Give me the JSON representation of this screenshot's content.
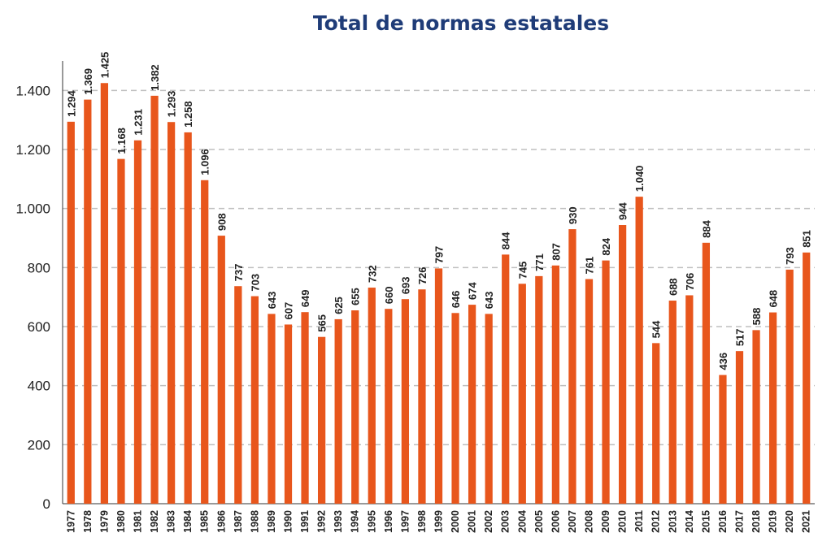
{
  "chart_data": {
    "type": "bar",
    "title": "Total de normas estatales",
    "xlabel": "",
    "ylabel": "",
    "ylim": [
      0,
      1500
    ],
    "yticks": [
      0,
      200,
      400,
      600,
      800,
      1000,
      1200,
      1400
    ],
    "ytick_labels": [
      "0",
      "200",
      "400",
      "600",
      "800",
      "1.000",
      "1.200",
      "1.400"
    ],
    "grid": true,
    "bar_color": "#e8561c",
    "grid_color": "#bfbfbf",
    "title_color": "#1f3c78",
    "categories": [
      "1977",
      "1978",
      "1979",
      "1980",
      "1981",
      "1982",
      "1983",
      "1984",
      "1985",
      "1986",
      "1987",
      "1988",
      "1989",
      "1990",
      "1991",
      "1992",
      "1993",
      "1994",
      "1995",
      "1996",
      "1997",
      "1998",
      "1999",
      "2000",
      "2001",
      "2002",
      "2003",
      "2004",
      "2005",
      "2006",
      "2007",
      "2008",
      "2009",
      "2010",
      "2011",
      "2012",
      "2013",
      "2014",
      "2015",
      "2016",
      "2017",
      "2018",
      "2019",
      "2020",
      "2021"
    ],
    "values": [
      1294,
      1369,
      1425,
      1168,
      1231,
      1382,
      1293,
      1258,
      1096,
      908,
      737,
      703,
      643,
      607,
      649,
      565,
      625,
      655,
      732,
      660,
      693,
      726,
      797,
      646,
      674,
      643,
      844,
      745,
      771,
      807,
      930,
      761,
      824,
      944,
      1040,
      544,
      688,
      706,
      884,
      436,
      517,
      588,
      648,
      793,
      851
    ],
    "value_labels": [
      "1.294",
      "1.369",
      "1.425",
      "1.168",
      "1.231",
      "1.382",
      "1.293",
      "1.258",
      "1.096",
      "908",
      "737",
      "703",
      "643",
      "607",
      "649",
      "565",
      "625",
      "655",
      "732",
      "660",
      "693",
      "726",
      "797",
      "646",
      "674",
      "643",
      "844",
      "745",
      "771",
      "807",
      "930",
      "761",
      "824",
      "944",
      "1.040",
      "544",
      "688",
      "706",
      "884",
      "436",
      "517",
      "588",
      "648",
      "793",
      "851"
    ]
  }
}
